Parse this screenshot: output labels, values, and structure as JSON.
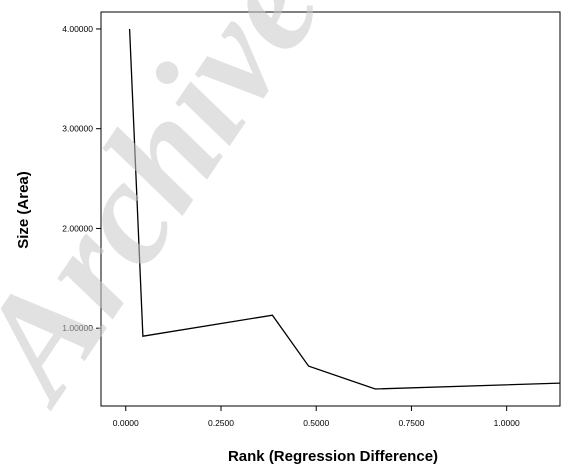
{
  "watermark": "Archive",
  "chart_data": {
    "type": "line",
    "title": "",
    "xlabel": "Rank (Regression Difference)",
    "ylabel": "Size (Area)",
    "xlim": [
      -0.065,
      1.14
    ],
    "ylim": [
      0.22,
      4.17
    ],
    "x_ticks": [
      0.0,
      0.25,
      0.5,
      0.75,
      1.0
    ],
    "x_tick_labels": [
      "0.0000",
      "0.2500",
      "0.5000",
      "0.7500",
      "1.0000"
    ],
    "y_ticks": [
      1.0,
      2.0,
      3.0,
      4.0
    ],
    "y_tick_labels": [
      "1.00000",
      "2.00000",
      "3.00000",
      "4.00000"
    ],
    "grid": false,
    "line_color": "#000000",
    "series": [
      {
        "x": [
          0.01,
          0.045,
          0.385,
          0.48,
          0.655,
          1.14
        ],
        "y": [
          4.0,
          0.92,
          1.13,
          0.62,
          0.39,
          0.45
        ]
      }
    ]
  }
}
